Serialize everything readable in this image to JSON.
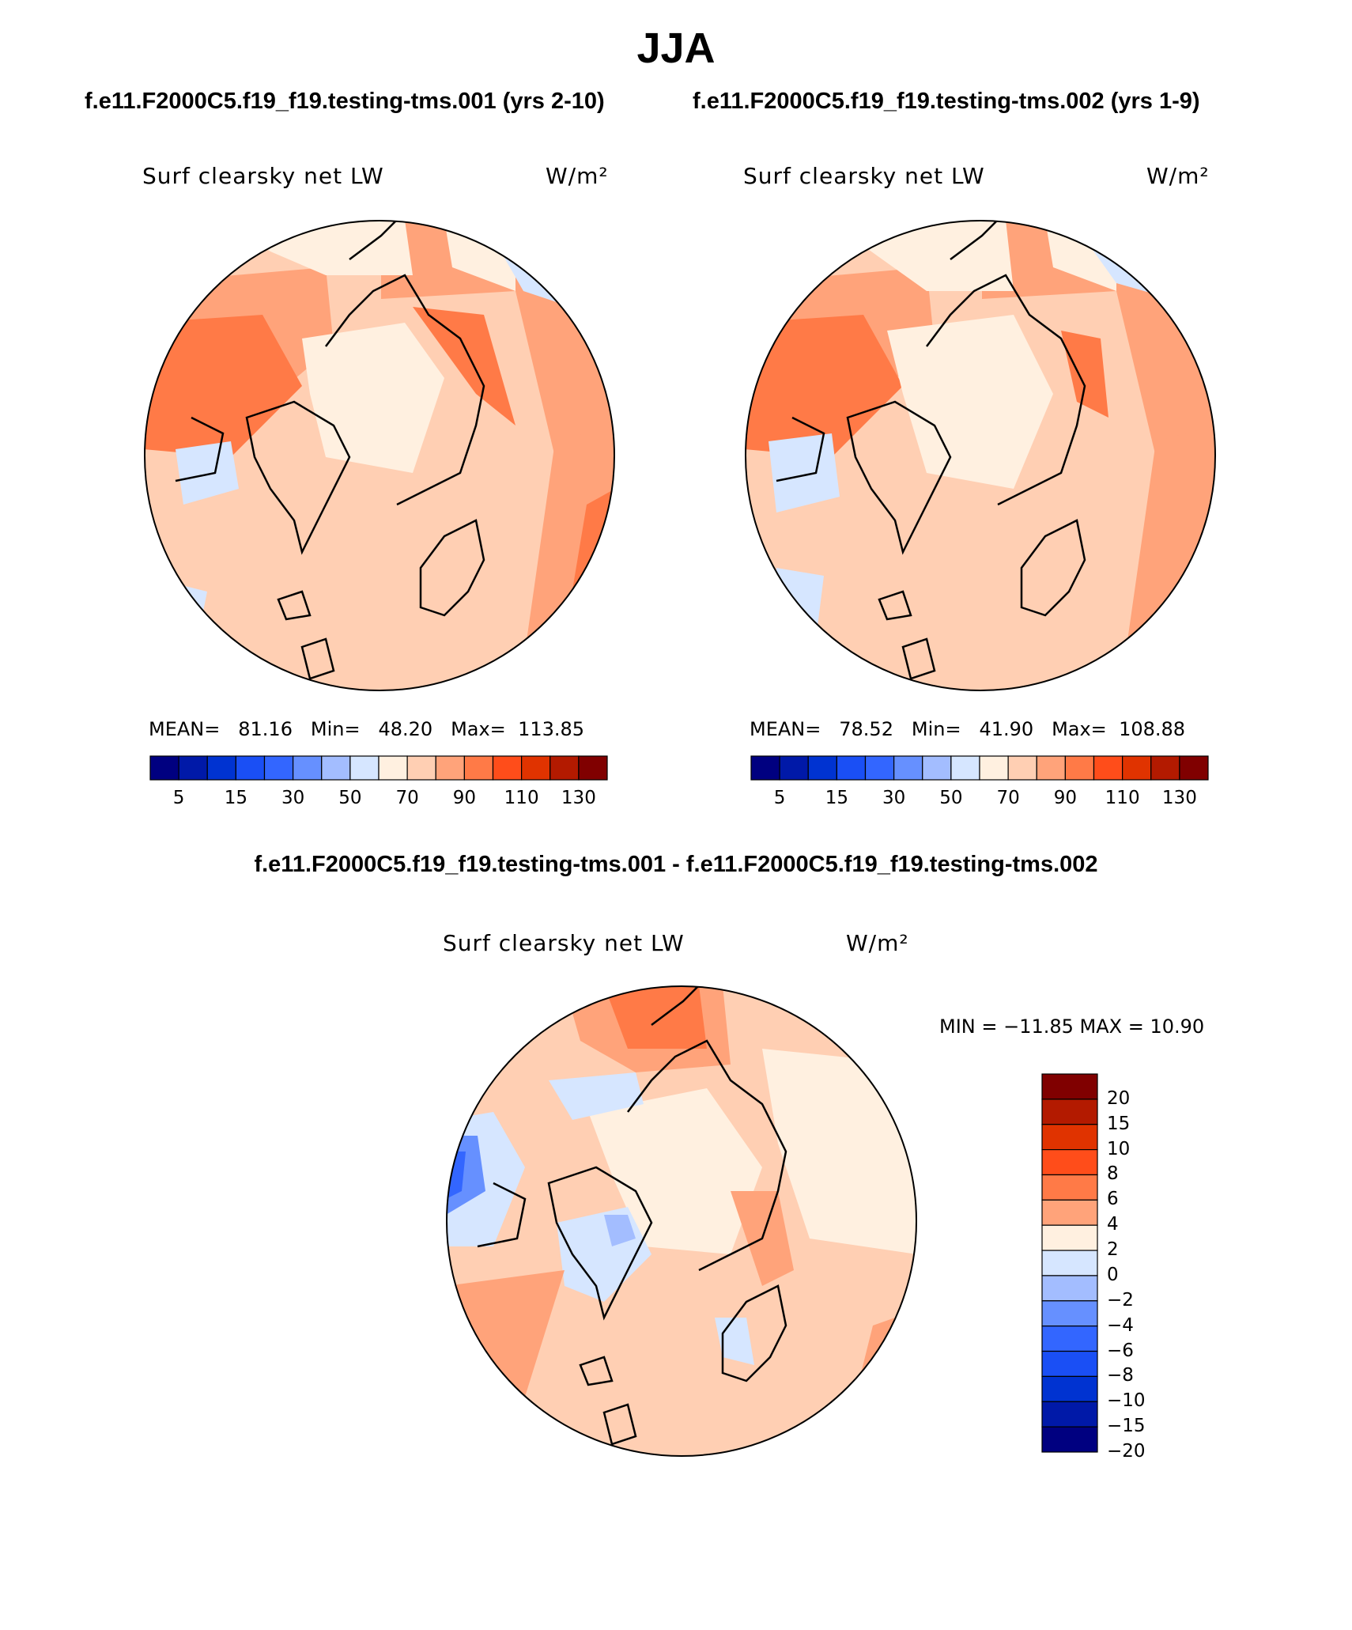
{
  "title": "JJA",
  "case1_title": "f.e11.F2000C5.f19_f19.testing-tms.001 (yrs 2-10)",
  "case2_title": "f.e11.F2000C5.f19_f19.testing-tms.002 (yrs 1-9)",
  "diff_title": "f.e11.F2000C5.f19_f19.testing-tms.001 - f.e11.F2000C5.f19_f19.testing-tms.002",
  "panels": [
    {
      "variable": "Surf clearsky net LW",
      "units": "W/m²",
      "mean_label": "MEAN=",
      "mean": "81.16",
      "min_label": "Min=",
      "min": "48.20",
      "max_label": "Max=",
      "max": "113.85"
    },
    {
      "variable": "Surf clearsky net LW",
      "units": "W/m²",
      "mean_label": "MEAN=",
      "mean": "78.52",
      "min_label": "Min=",
      "min": "41.90",
      "max_label": "Max=",
      "max": "108.88"
    },
    {
      "variable": "Surf clearsky net LW",
      "units": "W/m²",
      "minmax_text": "MIN = −11.85 MAX =   10.90"
    }
  ],
  "colorbar_main": {
    "colors": [
      "#000080",
      "#0019a8",
      "#0033d1",
      "#1a4ff5",
      "#3366ff",
      "#6690ff",
      "#a3bdff",
      "#d6e6ff",
      "#fff0e0",
      "#ffcfb3",
      "#ffa37a",
      "#ff7a47",
      "#ff4d1a",
      "#e03300",
      "#b31a00",
      "#800000"
    ],
    "labels": [
      "5",
      "15",
      "30",
      "50",
      "70",
      "90",
      "110",
      "130"
    ]
  },
  "colorbar_diff": {
    "colors": [
      "#800000",
      "#b31a00",
      "#e03300",
      "#ff4d1a",
      "#ff7a47",
      "#ffa37a",
      "#fff0e0",
      "#d6e6ff",
      "#a3bdff",
      "#6690ff",
      "#3366ff",
      "#1a4ff5",
      "#0033d1",
      "#0019a8",
      "#000080"
    ],
    "labels": [
      "20",
      "15",
      "10",
      "8",
      "6",
      "4",
      "2",
      "0",
      "−2",
      "−4",
      "−6",
      "−8",
      "−10",
      "−15",
      "−20"
    ]
  },
  "colors": {
    "c1": "#fff0e0",
    "c2": "#ffcfb3",
    "c3": "#ffa37a",
    "c4": "#ff7a47",
    "c5": "#ff4d1a",
    "b1": "#d6e6ff",
    "b2": "#a3bdff",
    "b3": "#6690ff",
    "b4": "#3366ff",
    "b5": "#0033d1"
  }
}
